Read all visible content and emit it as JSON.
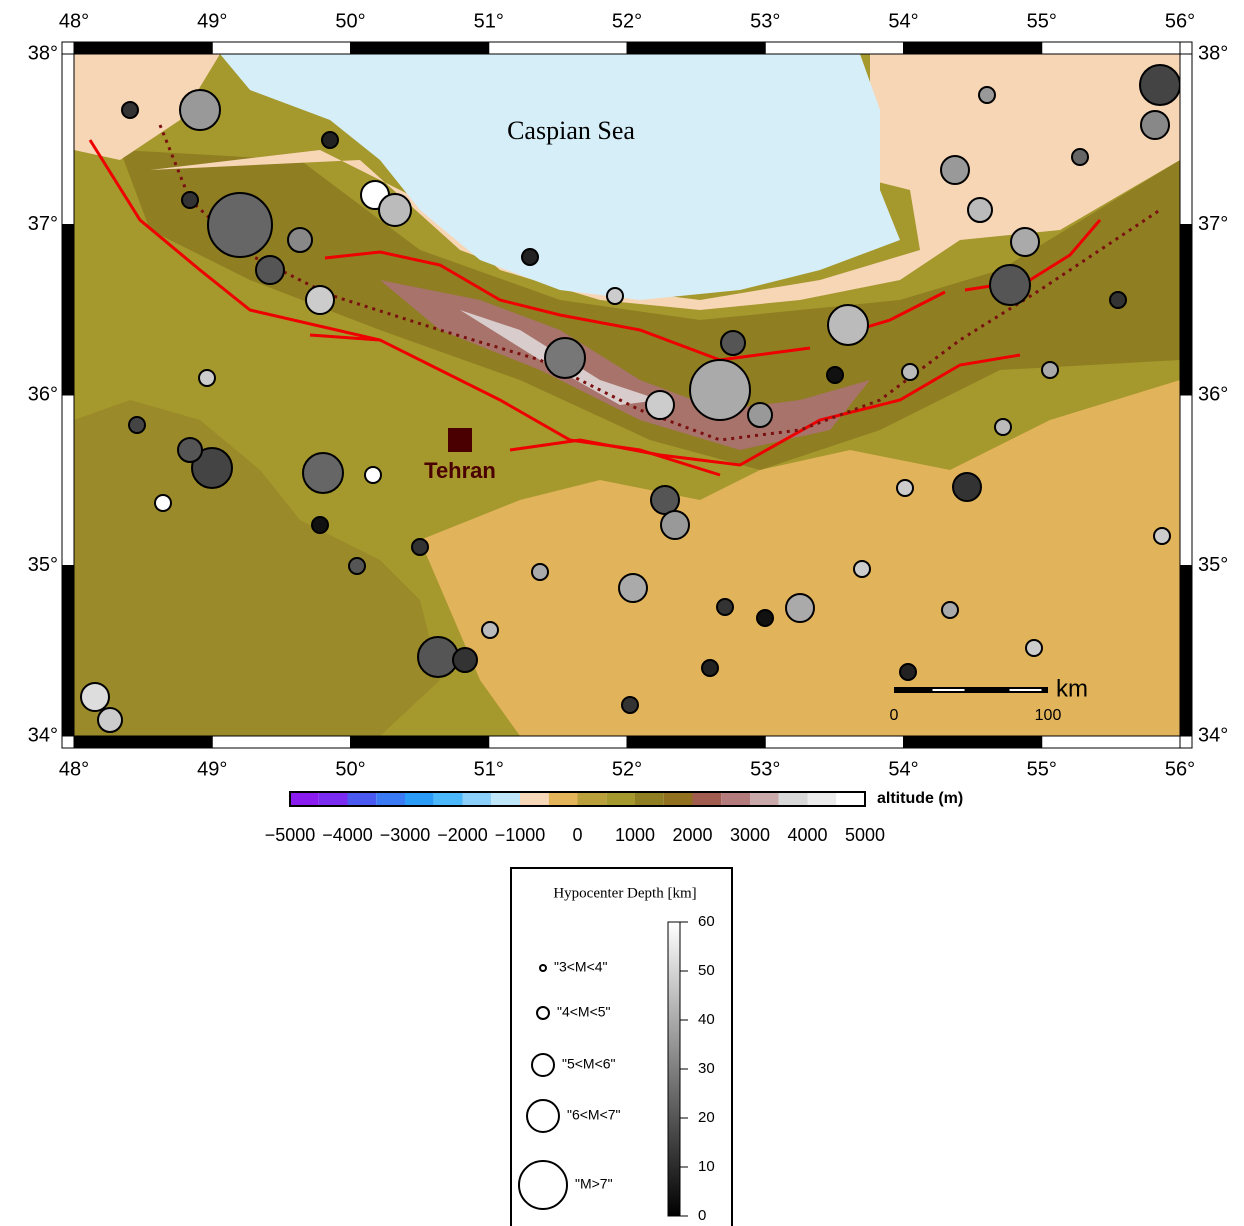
{
  "map": {
    "lon_labels": [
      "48°",
      "49°",
      "50°",
      "51°",
      "52°",
      "53°",
      "54°",
      "55°",
      "56°"
    ],
    "lat_labels": [
      "38°",
      "37°",
      "36°",
      "35°",
      "34°"
    ],
    "sea": "Caspian Sea",
    "city": "Tehran",
    "scale_bar": {
      "unit": "km",
      "ticks": [
        "0",
        "100"
      ]
    }
  },
  "altitude_bar": {
    "label": "altitude (m)",
    "ticks": [
      "−5000",
      "−4000",
      "−3000",
      "−2000",
      "−1000",
      "0",
      "1000",
      "2000",
      "3000",
      "4000",
      "5000"
    ]
  },
  "legend": {
    "title": "Hypocenter Depth [km]",
    "magnitudes": [
      "\"3<M<4\"",
      "\"4<M<5\"",
      "\"5<M<6\"",
      "\"6<M<7\"",
      "\"M>7\""
    ],
    "depth_ticks": [
      "60",
      "50",
      "40",
      "30",
      "20",
      "10",
      "0"
    ]
  }
}
